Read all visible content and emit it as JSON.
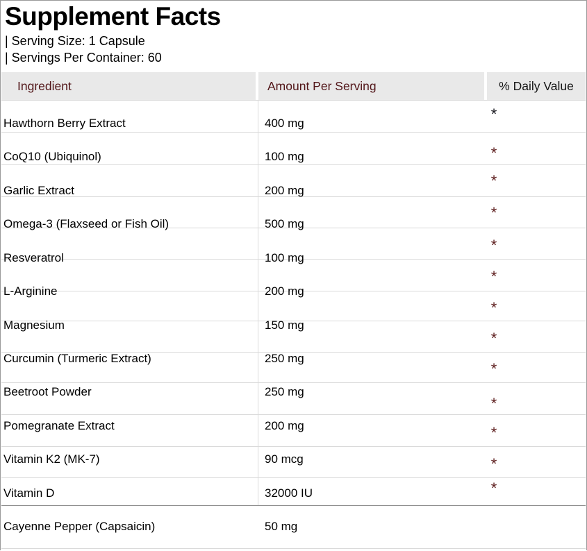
{
  "title": "Supplement Facts",
  "serving_size": "| Serving Size: 1 Capsule",
  "servings_per_container": "| Servings Per Container: 60",
  "table": {
    "headers": {
      "ingredient": "Ingredient",
      "amount": "Amount Per Serving",
      "daily_value": "% Daily Value"
    },
    "rows": [
      {
        "ingredient": "Hawthorn Berry Extract",
        "amount": "400 mg",
        "daily_value": "*"
      },
      {
        "ingredient": "CoQ10 (Ubiquinol)",
        "amount": "100 mg",
        "daily_value": "*"
      },
      {
        "ingredient": "Garlic Extract",
        "amount": "200 mg",
        "daily_value": "*"
      },
      {
        "ingredient": "Omega-3 (Flaxseed or Fish Oil)",
        "amount": "500 mg",
        "daily_value": "*"
      },
      {
        "ingredient": "Resveratrol",
        "amount": "100 mg",
        "daily_value": "*"
      },
      {
        "ingredient": "L-Arginine",
        "amount": "200 mg",
        "daily_value": "*"
      },
      {
        "ingredient": "Magnesium",
        "amount": "150 mg",
        "daily_value": "*"
      },
      {
        "ingredient": "Curcumin (Turmeric Extract)",
        "amount": "250 mg",
        "daily_value": "*"
      },
      {
        "ingredient": "Beetroot Powder",
        "amount": "250 mg",
        "daily_value": "*"
      },
      {
        "ingredient": "Pomegranate Extract",
        "amount": "200 mg",
        "daily_value": "*"
      },
      {
        "ingredient": "Vitamin K2 (MK-7)",
        "amount": "90 mcg",
        "daily_value": "*"
      },
      {
        "ingredient": "Vitamin D",
        "amount": "32000 IU",
        "daily_value": "*"
      },
      {
        "ingredient": "Cayenne Pepper (Capsaicin)",
        "amount": "50 mg",
        "daily_value": "*"
      }
    ]
  },
  "colors": {
    "header_bg": "#e9e9e9",
    "header_text": "#521619",
    "daily_value_header_text": "#141414",
    "body_text": "#000000",
    "asterisk": "#5c1c1c",
    "asterisk_first": "#16161d",
    "grid_line": "#d9d9d9",
    "dark_separator_line": "#8f8f8f",
    "outer_border": "#9a9a9a"
  }
}
